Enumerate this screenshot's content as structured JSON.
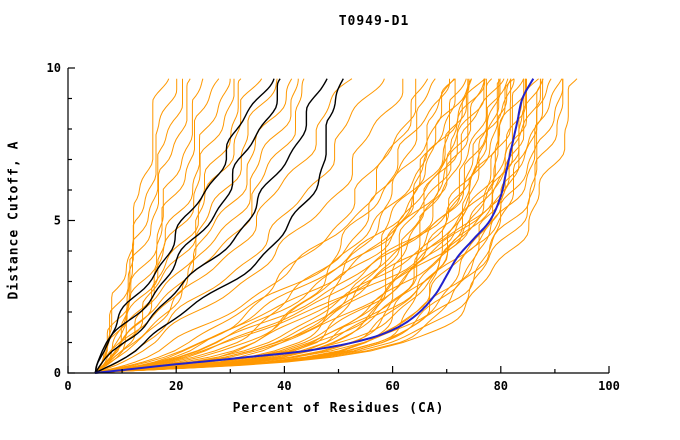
{
  "chart_data": {
    "type": "line",
    "title": "T0949-D1",
    "xlabel": "Percent of Residues (CA)",
    "ylabel": "Distance Cutoff, A",
    "xlim": [
      0,
      100
    ],
    "ylim": [
      0,
      10
    ],
    "x_ticks": [
      0,
      20,
      40,
      60,
      80,
      100
    ],
    "x_tick_labels": [
      "0",
      "20",
      "40",
      "60",
      "80",
      "100"
    ],
    "x_minor_step": 10,
    "y_ticks": [
      0,
      5,
      10
    ],
    "y_tick_labels": [
      "0",
      "5",
      "10"
    ],
    "y_minor_step": 1,
    "grid": false,
    "legend": "none",
    "colors": {
      "ensemble": "#ff9800",
      "highlight": "#000000",
      "best": "#2222cc",
      "axis": "#000000",
      "background": "#ffffff"
    },
    "start_x": 5,
    "y_top": 9.65,
    "anchor_ys": [
      0,
      1,
      5,
      9.65
    ],
    "orange_curves": [
      [
        7,
        12,
        17
      ],
      [
        7.5,
        13,
        19
      ],
      [
        8,
        14,
        21
      ],
      [
        8,
        15,
        23
      ],
      [
        8.5,
        17,
        25
      ],
      [
        9,
        18,
        27
      ],
      [
        9,
        20,
        29
      ],
      [
        9.5,
        21,
        31
      ],
      [
        10,
        23,
        33
      ],
      [
        10,
        24,
        35
      ],
      [
        10.5,
        26,
        38
      ],
      [
        11,
        28,
        41
      ],
      [
        11,
        30,
        43
      ],
      [
        12,
        32,
        45
      ],
      [
        12,
        35,
        52
      ],
      [
        14,
        40,
        57
      ],
      [
        16,
        45,
        62
      ],
      [
        20,
        52,
        65
      ],
      [
        25,
        50,
        67
      ],
      [
        30,
        55,
        68
      ],
      [
        22,
        58,
        70
      ],
      [
        35,
        54,
        70
      ],
      [
        28,
        60,
        72
      ],
      [
        40,
        57,
        72
      ],
      [
        32,
        62,
        73
      ],
      [
        45,
        60,
        74
      ],
      [
        26,
        63,
        74
      ],
      [
        50,
        61,
        75
      ],
      [
        38,
        66,
        75
      ],
      [
        24,
        62,
        76
      ],
      [
        42,
        64,
        76
      ],
      [
        48,
        65,
        77
      ],
      [
        30,
        68,
        77
      ],
      [
        52,
        64,
        78
      ],
      [
        36,
        70,
        78
      ],
      [
        55,
        66,
        79
      ],
      [
        44,
        71,
        79
      ],
      [
        28,
        68,
        80
      ],
      [
        46,
        72,
        80
      ],
      [
        56,
        70,
        81
      ],
      [
        34,
        73,
        81
      ],
      [
        50,
        69,
        82
      ],
      [
        40,
        74,
        82
      ],
      [
        58,
        72,
        83
      ],
      [
        38,
        75,
        83
      ],
      [
        52,
        73,
        84
      ],
      [
        46,
        76,
        84
      ],
      [
        30,
        74,
        85
      ],
      [
        54,
        77,
        85
      ],
      [
        44,
        75,
        86
      ],
      [
        58,
        78,
        86
      ],
      [
        48,
        76,
        87
      ],
      [
        56,
        79,
        88
      ],
      [
        50,
        78,
        88
      ],
      [
        60,
        80,
        89
      ],
      [
        55,
        80,
        90
      ],
      [
        58,
        82,
        91
      ],
      [
        60,
        83,
        92
      ],
      [
        62,
        85,
        94
      ]
    ],
    "black_curves": [
      [
        7,
        22,
        37
      ],
      [
        8,
        26,
        40
      ],
      [
        10,
        33,
        48
      ],
      [
        14,
        42,
        50
      ]
    ],
    "blue_curve": [
      [
        5,
        0
      ],
      [
        18,
        0.25
      ],
      [
        32,
        0.5
      ],
      [
        45,
        0.75
      ],
      [
        55,
        1.1
      ],
      [
        61,
        1.5
      ],
      [
        65,
        2.0
      ],
      [
        68,
        2.6
      ],
      [
        70,
        3.2
      ],
      [
        72,
        3.8
      ],
      [
        75,
        4.4
      ],
      [
        78,
        5.0
      ],
      [
        80,
        5.8
      ],
      [
        81,
        6.6
      ],
      [
        82,
        7.4
      ],
      [
        83,
        8.2
      ],
      [
        84,
        9.0
      ],
      [
        86,
        9.65
      ]
    ]
  }
}
